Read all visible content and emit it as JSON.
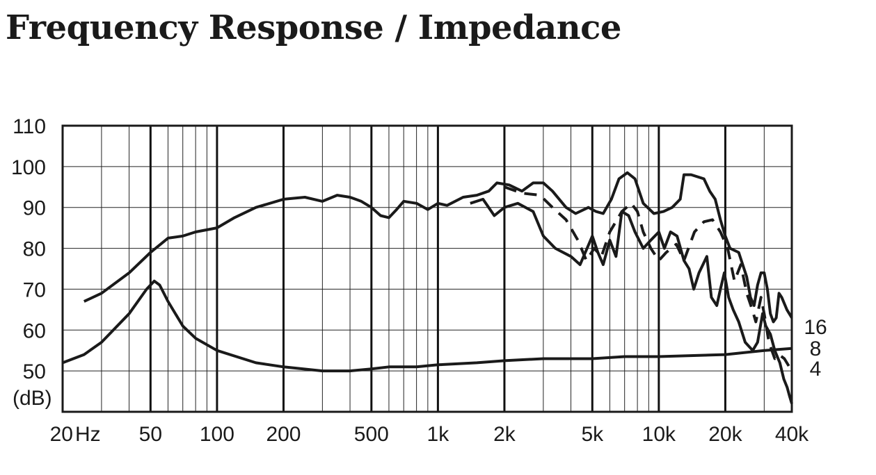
{
  "chart_data": {
    "type": "line",
    "title": "Frequency Response / Impedance",
    "x_scale": "log",
    "xlim": [
      20,
      40000
    ],
    "ylim": [
      40,
      110
    ],
    "x_tick_labels": [
      {
        "f": 20,
        "label": "20"
      },
      {
        "f": 50,
        "label": "50"
      },
      {
        "f": 100,
        "label": "100"
      },
      {
        "f": 200,
        "label": "200"
      },
      {
        "f": 500,
        "label": "500"
      },
      {
        "f": 1000,
        "label": "1k"
      },
      {
        "f": 2000,
        "label": "2k"
      },
      {
        "f": 5000,
        "label": "5k"
      },
      {
        "f": 10000,
        "label": "10k"
      },
      {
        "f": 20000,
        "label": "20k"
      },
      {
        "f": 40000,
        "label": "40k"
      }
    ],
    "x_unit": "Hz",
    "y_ticks": [
      110,
      100,
      90,
      80,
      70,
      60,
      50
    ],
    "y_unit_label": "(dB)",
    "right_labels": [
      "16",
      "8",
      "4"
    ],
    "grid": true,
    "series": [
      {
        "style": "solid",
        "points": [
          [
            25,
            67
          ],
          [
            30,
            69
          ],
          [
            40,
            74
          ],
          [
            50,
            79
          ],
          [
            60,
            82.5
          ],
          [
            70,
            83
          ],
          [
            80,
            84
          ],
          [
            100,
            85
          ],
          [
            120,
            87.5
          ],
          [
            150,
            90
          ],
          [
            200,
            92
          ],
          [
            250,
            92.5
          ],
          [
            300,
            91.5
          ],
          [
            350,
            93
          ],
          [
            400,
            92.5
          ],
          [
            450,
            91.5
          ],
          [
            500,
            90
          ],
          [
            550,
            88
          ],
          [
            600,
            87.5
          ],
          [
            650,
            89.5
          ],
          [
            700,
            91.5
          ],
          [
            800,
            91
          ],
          [
            900,
            89.5
          ],
          [
            1000,
            91
          ],
          [
            1100,
            90.5
          ],
          [
            1300,
            92.5
          ],
          [
            1500,
            93
          ],
          [
            1700,
            94
          ],
          [
            1850,
            96
          ],
          [
            2100,
            95.5
          ],
          [
            2400,
            94
          ],
          [
            2700,
            96
          ],
          [
            3000,
            96
          ],
          [
            3300,
            94
          ],
          [
            3800,
            90
          ],
          [
            4200,
            88.5
          ],
          [
            4800,
            90
          ],
          [
            5200,
            89
          ],
          [
            5600,
            88.5
          ],
          [
            6100,
            92
          ],
          [
            6600,
            97
          ],
          [
            7200,
            98.5
          ],
          [
            7800,
            97
          ],
          [
            8500,
            91
          ],
          [
            9500,
            88.5
          ],
          [
            10500,
            89
          ],
          [
            11500,
            90
          ],
          [
            12500,
            92
          ],
          [
            13000,
            98
          ],
          [
            14000,
            98
          ],
          [
            16000,
            97
          ],
          [
            17000,
            94
          ],
          [
            18000,
            92
          ],
          [
            19000,
            87
          ],
          [
            20000,
            83
          ],
          [
            21000,
            80
          ],
          [
            23000,
            79
          ],
          [
            25000,
            73
          ],
          [
            26000,
            68
          ],
          [
            27000,
            66
          ],
          [
            28000,
            71
          ],
          [
            29000,
            74
          ],
          [
            30000,
            74
          ],
          [
            31000,
            70
          ],
          [
            32000,
            64
          ],
          [
            33000,
            62
          ],
          [
            34000,
            63
          ],
          [
            35000,
            69
          ],
          [
            36000,
            68
          ],
          [
            38000,
            65
          ],
          [
            40000,
            63
          ]
        ]
      },
      {
        "style": "dashed",
        "points": [
          [
            2000,
            95
          ],
          [
            2400,
            93.5
          ],
          [
            2900,
            93
          ],
          [
            3300,
            90
          ],
          [
            3800,
            87
          ],
          [
            4300,
            82
          ],
          [
            4700,
            77
          ],
          [
            5100,
            80
          ],
          [
            5500,
            78
          ],
          [
            6000,
            84
          ],
          [
            6800,
            89
          ],
          [
            7500,
            91
          ],
          [
            8000,
            89
          ],
          [
            8500,
            84
          ],
          [
            9200,
            80
          ],
          [
            10000,
            77
          ],
          [
            10800,
            79
          ],
          [
            12000,
            81
          ],
          [
            13000,
            77
          ],
          [
            14500,
            84
          ],
          [
            16000,
            86.5
          ],
          [
            17500,
            87
          ],
          [
            19000,
            84
          ],
          [
            20500,
            80
          ],
          [
            22000,
            72
          ],
          [
            23500,
            76
          ],
          [
            25000,
            69
          ],
          [
            26500,
            65
          ],
          [
            27500,
            62
          ],
          [
            29000,
            68
          ],
          [
            30000,
            64
          ],
          [
            31500,
            57
          ],
          [
            33500,
            53
          ],
          [
            35000,
            54
          ],
          [
            37000,
            53
          ],
          [
            40000,
            50
          ]
        ]
      },
      {
        "style": "solid",
        "points": [
          [
            1400,
            91
          ],
          [
            1600,
            92
          ],
          [
            1800,
            88
          ],
          [
            2000,
            90
          ],
          [
            2300,
            91
          ],
          [
            2700,
            89
          ],
          [
            3000,
            83
          ],
          [
            3400,
            80
          ],
          [
            4000,
            78
          ],
          [
            4400,
            76
          ],
          [
            5000,
            83
          ],
          [
            5300,
            79
          ],
          [
            5600,
            76
          ],
          [
            6000,
            82
          ],
          [
            6400,
            78
          ],
          [
            6800,
            89
          ],
          [
            7300,
            88
          ],
          [
            7800,
            84
          ],
          [
            8500,
            80
          ],
          [
            9200,
            82
          ],
          [
            10000,
            84
          ],
          [
            10600,
            80
          ],
          [
            11300,
            84
          ],
          [
            12100,
            83
          ],
          [
            13000,
            77
          ],
          [
            13700,
            75
          ],
          [
            14400,
            70
          ],
          [
            15200,
            74
          ],
          [
            16500,
            78
          ],
          [
            17300,
            68
          ],
          [
            18300,
            66
          ],
          [
            19000,
            70
          ],
          [
            19800,
            74
          ],
          [
            20700,
            68
          ],
          [
            21700,
            65
          ],
          [
            23000,
            62
          ],
          [
            24600,
            57
          ],
          [
            26600,
            55
          ],
          [
            28000,
            57
          ],
          [
            29500,
            64
          ],
          [
            30500,
            61
          ],
          [
            32000,
            59
          ],
          [
            33500,
            55
          ],
          [
            35300,
            52
          ],
          [
            36800,
            48
          ],
          [
            38100,
            46
          ],
          [
            39000,
            44
          ],
          [
            40000,
            42
          ]
        ]
      },
      {
        "style": "solid",
        "points": [
          [
            20,
            52
          ],
          [
            25,
            54
          ],
          [
            30,
            57
          ],
          [
            40,
            64
          ],
          [
            48,
            70
          ],
          [
            52,
            72
          ],
          [
            55,
            71
          ],
          [
            60,
            67
          ],
          [
            70,
            61
          ],
          [
            80,
            58
          ],
          [
            100,
            55
          ],
          [
            150,
            52
          ],
          [
            200,
            51
          ],
          [
            300,
            50
          ],
          [
            400,
            50
          ],
          [
            500,
            50.5
          ],
          [
            600,
            51
          ],
          [
            800,
            51
          ],
          [
            1000,
            51.5
          ],
          [
            1500,
            52
          ],
          [
            2000,
            52.5
          ],
          [
            3000,
            53
          ],
          [
            5000,
            53
          ],
          [
            7000,
            53.5
          ],
          [
            10000,
            53.5
          ],
          [
            20000,
            54
          ],
          [
            30000,
            55
          ],
          [
            40000,
            55.5
          ]
        ]
      }
    ]
  }
}
